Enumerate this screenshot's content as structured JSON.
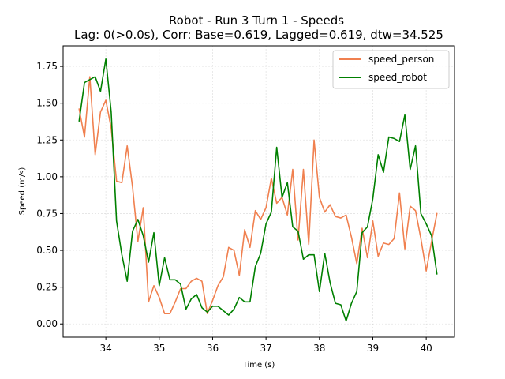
{
  "chart_data": {
    "type": "line",
    "title_line1": "Robot - Run 3 Turn 1 - Speeds",
    "title_line2": "Lag: 0(>0.0s), Corr: Base=0.619, Lagged=0.619, dtw=34.525",
    "xlabel": "Time (s)",
    "ylabel": "Speed (m/s)",
    "xlim": [
      33.2,
      40.53
    ],
    "ylim": [
      -0.09,
      1.89
    ],
    "xticks": [
      34,
      35,
      36,
      37,
      38,
      39,
      40
    ],
    "xtick_labels": [
      "34",
      "35",
      "36",
      "37",
      "38",
      "39",
      "40"
    ],
    "yticks": [
      0.0,
      0.25,
      0.5,
      0.75,
      1.0,
      1.25,
      1.5,
      1.75
    ],
    "ytick_labels": [
      "0.00",
      "0.25",
      "0.50",
      "0.75",
      "1.00",
      "1.25",
      "1.50",
      "1.75"
    ],
    "grid": true,
    "legend_position": "top-right",
    "series": [
      {
        "name": "speed_person",
        "color": "#f0804f",
        "x": [
          33.5,
          33.6,
          33.7,
          33.8,
          33.9,
          34.0,
          34.1,
          34.2,
          34.3,
          34.4,
          34.5,
          34.6,
          34.7,
          34.8,
          34.9,
          35.0,
          35.1,
          35.2,
          35.3,
          35.4,
          35.5,
          35.6,
          35.7,
          35.8,
          35.9,
          36.0,
          36.1,
          36.2,
          36.3,
          36.4,
          36.5,
          36.6,
          36.7,
          36.8,
          36.9,
          37.0,
          37.1,
          37.2,
          37.3,
          37.4,
          37.5,
          37.6,
          37.7,
          37.8,
          37.9,
          38.0,
          38.1,
          38.2,
          38.3,
          38.4,
          38.5,
          38.6,
          38.7,
          38.8,
          38.9,
          39.0,
          39.1,
          39.2,
          39.3,
          39.4,
          39.5,
          39.6,
          39.7,
          39.8,
          39.9,
          40.0,
          40.1,
          40.2
        ],
        "y": [
          1.46,
          1.27,
          1.68,
          1.15,
          1.44,
          1.52,
          1.33,
          0.97,
          0.96,
          1.21,
          0.93,
          0.56,
          0.79,
          0.15,
          0.26,
          0.18,
          0.07,
          0.07,
          0.15,
          0.24,
          0.24,
          0.29,
          0.31,
          0.29,
          0.07,
          0.16,
          0.26,
          0.32,
          0.52,
          0.5,
          0.33,
          0.64,
          0.52,
          0.77,
          0.71,
          0.79,
          0.99,
          0.82,
          0.86,
          0.74,
          1.05,
          0.57,
          1.05,
          0.54,
          1.25,
          0.86,
          0.76,
          0.81,
          0.73,
          0.72,
          0.74,
          0.59,
          0.41,
          0.65,
          0.45,
          0.7,
          0.46,
          0.55,
          0.54,
          0.58,
          0.89,
          0.51,
          0.8,
          0.77,
          0.58,
          0.36,
          0.56,
          0.75
        ]
      },
      {
        "name": "speed_robot",
        "color": "#008000",
        "x": [
          33.5,
          33.6,
          33.7,
          33.8,
          33.9,
          34.0,
          34.1,
          34.2,
          34.3,
          34.4,
          34.5,
          34.6,
          34.7,
          34.8,
          34.9,
          35.0,
          35.1,
          35.2,
          35.3,
          35.4,
          35.5,
          35.6,
          35.7,
          35.8,
          35.9,
          36.0,
          36.1,
          36.2,
          36.3,
          36.4,
          36.5,
          36.6,
          36.7,
          36.8,
          36.9,
          37.0,
          37.1,
          37.2,
          37.3,
          37.4,
          37.5,
          37.6,
          37.7,
          37.8,
          37.9,
          38.0,
          38.1,
          38.2,
          38.3,
          38.4,
          38.5,
          38.6,
          38.7,
          38.8,
          38.9,
          39.0,
          39.1,
          39.2,
          39.3,
          39.4,
          39.5,
          39.6,
          39.7,
          39.8,
          39.9,
          40.0,
          40.1,
          40.2
        ],
        "y": [
          1.38,
          1.64,
          1.66,
          1.68,
          1.58,
          1.8,
          1.44,
          0.7,
          0.47,
          0.29,
          0.63,
          0.71,
          0.6,
          0.42,
          0.62,
          0.26,
          0.45,
          0.3,
          0.3,
          0.27,
          0.1,
          0.17,
          0.2,
          0.11,
          0.08,
          0.12,
          0.12,
          0.09,
          0.06,
          0.1,
          0.18,
          0.15,
          0.15,
          0.39,
          0.48,
          0.68,
          0.76,
          1.2,
          0.86,
          0.96,
          0.66,
          0.63,
          0.44,
          0.47,
          0.47,
          0.22,
          0.48,
          0.28,
          0.14,
          0.13,
          0.02,
          0.14,
          0.22,
          0.62,
          0.66,
          0.85,
          1.15,
          1.03,
          1.27,
          1.26,
          1.24,
          1.42,
          1.05,
          1.21,
          0.75,
          0.68,
          0.6,
          0.34
        ]
      }
    ]
  }
}
